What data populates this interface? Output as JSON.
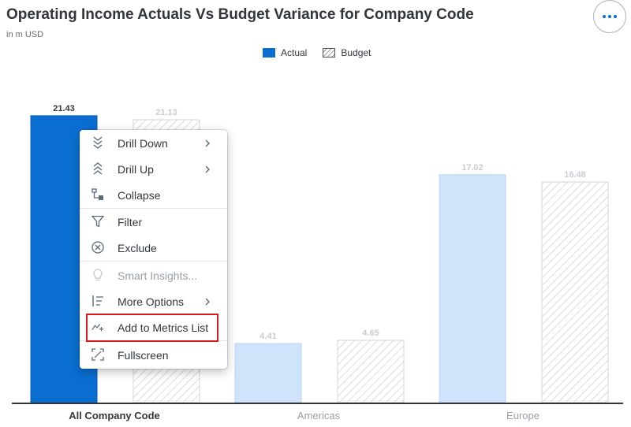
{
  "header": {
    "title": "Operating Income Actuals Vs Budget Variance for Company Code",
    "subtitle": "in m USD",
    "more_icon": "more-horizontal-icon"
  },
  "legend": {
    "actual_label": "Actual",
    "budget_label": "Budget"
  },
  "colors": {
    "actual_selected": "#0a6ed1",
    "actual_dimmed": "#cfe3fb",
    "budget_hatch": "#c9c9c9",
    "axis": "#32363a"
  },
  "chart_data": {
    "type": "bar",
    "categories": [
      "All Company Code",
      "Americas",
      "Europe"
    ],
    "series": [
      {
        "name": "Actual",
        "values": [
          21.43,
          4.41,
          17.02
        ]
      },
      {
        "name": "Budget",
        "values": [
          21.13,
          4.65,
          16.48
        ]
      }
    ],
    "data_labels": {
      "Actual": [
        "21.43",
        "4.41",
        "17.02"
      ],
      "Budget": [
        "21.13",
        "4.65",
        "16.48"
      ]
    },
    "ylim": [
      0,
      22.6
    ],
    "selected_category": "All Company Code",
    "legend_position": "top-center",
    "grid": false
  },
  "context_menu": {
    "items": [
      {
        "label": "Drill Down",
        "icon": "drill-down-icon",
        "submenu": true,
        "enabled": true
      },
      {
        "label": "Drill Up",
        "icon": "drill-up-icon",
        "submenu": true,
        "enabled": true
      },
      {
        "label": "Collapse",
        "icon": "collapse-icon",
        "submenu": false,
        "enabled": true
      },
      {
        "label": "Filter",
        "icon": "filter-icon",
        "submenu": false,
        "enabled": true
      },
      {
        "label": "Exclude",
        "icon": "exclude-icon",
        "submenu": false,
        "enabled": true
      },
      {
        "label": "Smart Insights...",
        "icon": "lightbulb-icon",
        "submenu": false,
        "enabled": false
      },
      {
        "label": "More Options",
        "icon": "more-options-icon",
        "submenu": true,
        "enabled": true
      },
      {
        "label": "Add to Metrics List",
        "icon": "add-metric-icon",
        "submenu": false,
        "enabled": true,
        "highlighted": true
      },
      {
        "label": "Fullscreen",
        "icon": "fullscreen-icon",
        "submenu": false,
        "enabled": true
      }
    ]
  }
}
